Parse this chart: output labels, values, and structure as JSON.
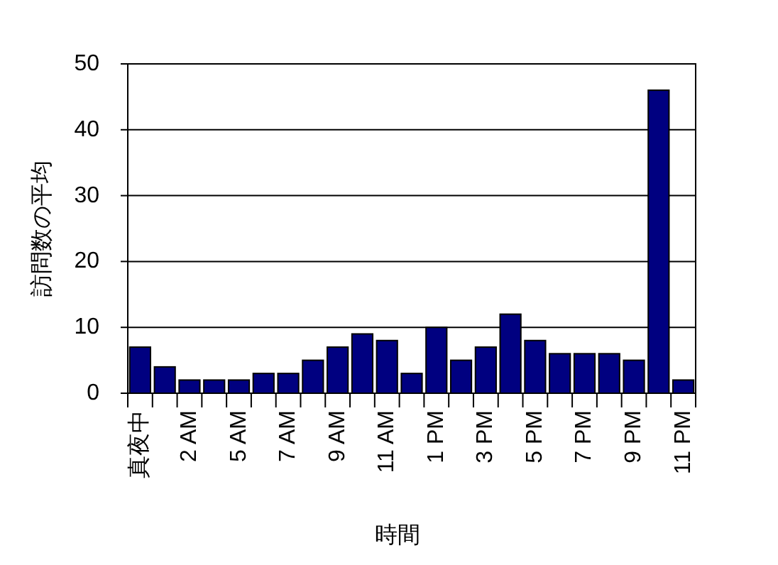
{
  "chart_data": {
    "type": "bar",
    "xlabel": "時間",
    "ylabel": "訪問数の平均",
    "categories": [
      "真夜中",
      null,
      "2 AM",
      null,
      "5 AM",
      null,
      "7 AM",
      null,
      "9 AM",
      null,
      "11 AM",
      null,
      "1 PM",
      null,
      "3 PM",
      null,
      "5 PM",
      null,
      "7 PM",
      null,
      "9 PM",
      null,
      "11 PM"
    ],
    "values": [
      7,
      4,
      2,
      2,
      2,
      3,
      3,
      5,
      7,
      9,
      8,
      3,
      10,
      5,
      7,
      12,
      8,
      6,
      6,
      6,
      5,
      46,
      2
    ],
    "color": "#000080",
    "ylim": [
      0,
      50
    ],
    "yticks": [
      0,
      10,
      20,
      30,
      40,
      50
    ],
    "grid": "y"
  }
}
